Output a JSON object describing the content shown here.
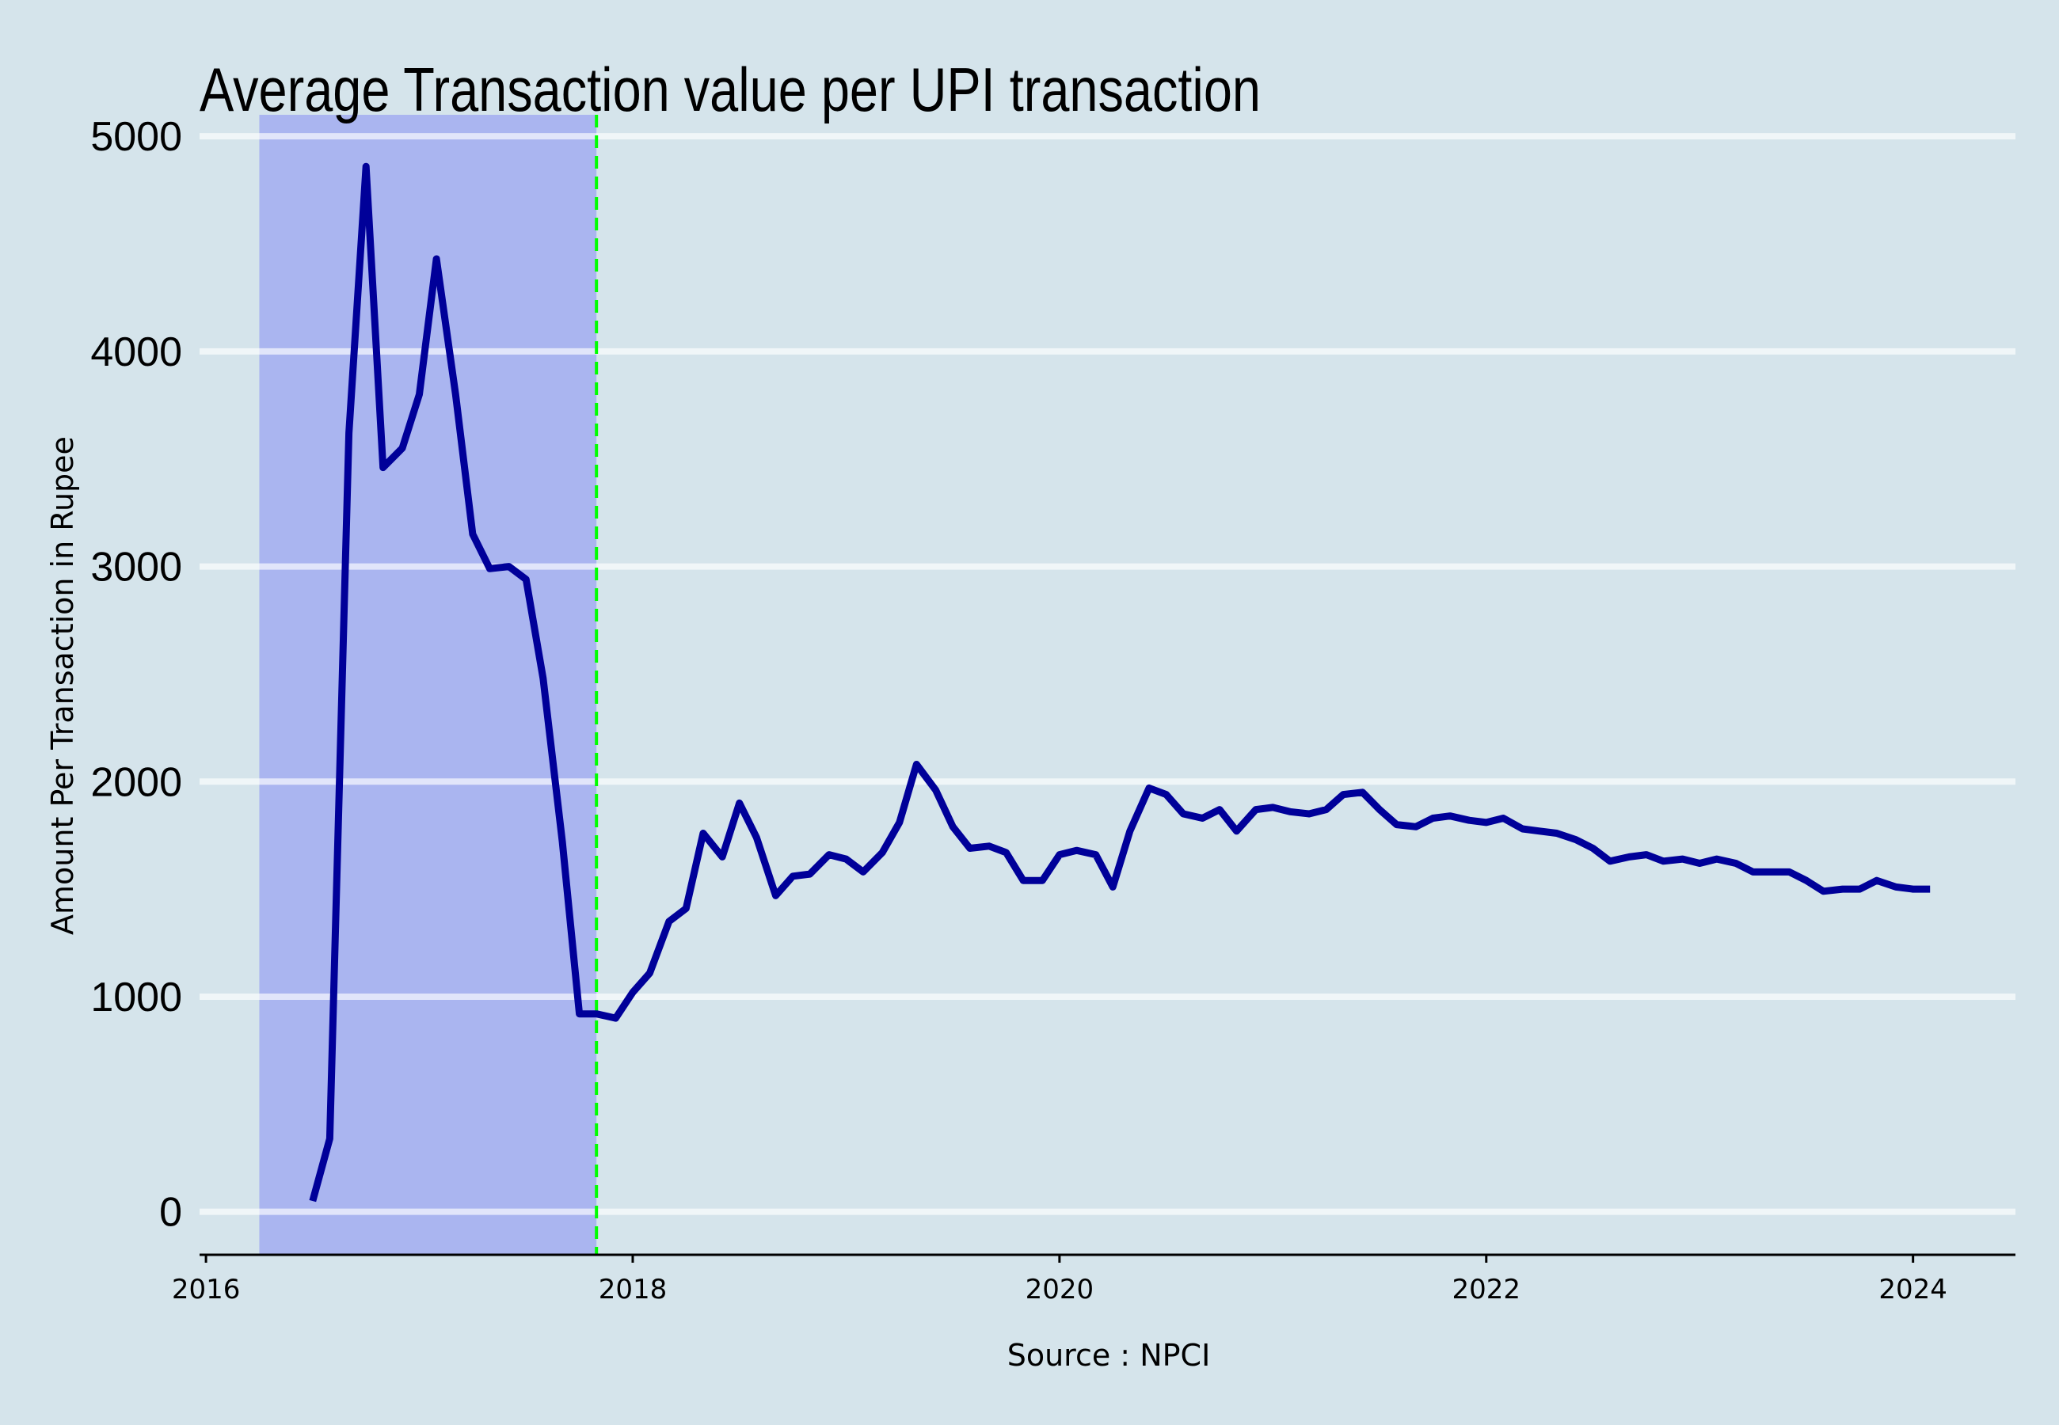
{
  "chart_data": {
    "type": "line",
    "title": "Average Transaction value per UPI transaction",
    "xlabel": "Source : NPCI",
    "ylabel": "Amount Per Transaction in Rupee",
    "xlim": [
      2015.97,
      2024.48
    ],
    "ylim": [
      -200,
      5100
    ],
    "y_ticks": [
      0,
      1000,
      2000,
      3000,
      4000,
      5000
    ],
    "x_ticks": [
      2016,
      2018,
      2020,
      2022,
      2024
    ],
    "grid": {
      "horizontal": true,
      "vertical": false
    },
    "highlight_region": {
      "x_start": 2016.25,
      "x_end": 2017.83,
      "color": "#aab5f0"
    },
    "reference_line": {
      "x": 2017.83,
      "color": "#00ff00",
      "style": "dashed"
    },
    "series": [
      {
        "color": "#000099",
        "points": [
          [
            2016.5,
            50
          ],
          [
            2016.58,
            340
          ],
          [
            2016.67,
            3620
          ],
          [
            2016.75,
            4860
          ],
          [
            2016.83,
            3460
          ],
          [
            2016.92,
            3550
          ],
          [
            2017.0,
            3800
          ],
          [
            2017.08,
            4430
          ],
          [
            2017.17,
            3800
          ],
          [
            2017.25,
            3150
          ],
          [
            2017.33,
            2990
          ],
          [
            2017.42,
            3000
          ],
          [
            2017.5,
            2940
          ],
          [
            2017.58,
            2480
          ],
          [
            2017.67,
            1720
          ],
          [
            2017.75,
            920
          ],
          [
            2017.83,
            920
          ],
          [
            2017.92,
            900
          ],
          [
            2018.0,
            1020
          ],
          [
            2018.08,
            1110
          ],
          [
            2018.17,
            1350
          ],
          [
            2018.25,
            1410
          ],
          [
            2018.33,
            1760
          ],
          [
            2018.42,
            1650
          ],
          [
            2018.5,
            1900
          ],
          [
            2018.58,
            1740
          ],
          [
            2018.67,
            1470
          ],
          [
            2018.75,
            1560
          ],
          [
            2018.83,
            1570
          ],
          [
            2018.92,
            1660
          ],
          [
            2019.0,
            1640
          ],
          [
            2019.08,
            1580
          ],
          [
            2019.17,
            1670
          ],
          [
            2019.25,
            1810
          ],
          [
            2019.33,
            2080
          ],
          [
            2019.42,
            1960
          ],
          [
            2019.5,
            1790
          ],
          [
            2019.58,
            1690
          ],
          [
            2019.67,
            1700
          ],
          [
            2019.75,
            1670
          ],
          [
            2019.83,
            1540
          ],
          [
            2019.92,
            1540
          ],
          [
            2020.0,
            1660
          ],
          [
            2020.08,
            1680
          ],
          [
            2020.17,
            1660
          ],
          [
            2020.25,
            1510
          ],
          [
            2020.33,
            1770
          ],
          [
            2020.42,
            1970
          ],
          [
            2020.5,
            1940
          ],
          [
            2020.58,
            1850
          ],
          [
            2020.67,
            1830
          ],
          [
            2020.75,
            1870
          ],
          [
            2020.83,
            1770
          ],
          [
            2020.92,
            1870
          ],
          [
            2021.0,
            1880
          ],
          [
            2021.08,
            1860
          ],
          [
            2021.17,
            1850
          ],
          [
            2021.25,
            1870
          ],
          [
            2021.33,
            1940
          ],
          [
            2021.42,
            1950
          ],
          [
            2021.5,
            1870
          ],
          [
            2021.58,
            1800
          ],
          [
            2021.67,
            1790
          ],
          [
            2021.75,
            1830
          ],
          [
            2021.83,
            1840
          ],
          [
            2021.92,
            1820
          ],
          [
            2022.0,
            1810
          ],
          [
            2022.08,
            1830
          ],
          [
            2022.17,
            1780
          ],
          [
            2022.25,
            1770
          ],
          [
            2022.33,
            1760
          ],
          [
            2022.42,
            1730
          ],
          [
            2022.5,
            1690
          ],
          [
            2022.58,
            1630
          ],
          [
            2022.67,
            1650
          ],
          [
            2022.75,
            1660
          ],
          [
            2022.83,
            1630
          ],
          [
            2022.92,
            1640
          ],
          [
            2023.0,
            1620
          ],
          [
            2023.08,
            1640
          ],
          [
            2023.17,
            1620
          ],
          [
            2023.25,
            1580
          ],
          [
            2023.33,
            1580
          ],
          [
            2023.42,
            1580
          ],
          [
            2023.5,
            1540
          ],
          [
            2023.58,
            1490
          ],
          [
            2023.67,
            1500
          ],
          [
            2023.75,
            1500
          ],
          [
            2023.83,
            1540
          ],
          [
            2023.92,
            1510
          ],
          [
            2024.0,
            1500
          ],
          [
            2024.08,
            1500
          ]
        ]
      }
    ]
  }
}
